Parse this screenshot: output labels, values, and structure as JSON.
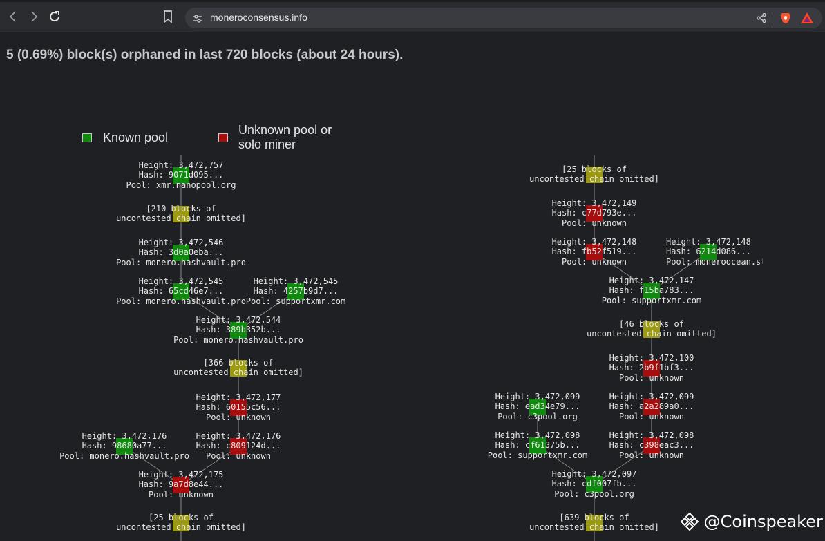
{
  "browser": {
    "url": "moneroconsensus.info",
    "icons": [
      "back-icon",
      "forward-icon",
      "reload-icon",
      "bookmark-icon",
      "site-info-icon",
      "share-icon",
      "brave-shields-icon",
      "brave-rewards-icon"
    ]
  },
  "page": {
    "headline": "5 (0.69%) block(s) orphaned in last 720 blocks (about 24 hours).",
    "legend": {
      "known": {
        "label": "Known pool",
        "color": "#0f8a0f"
      },
      "unknown": {
        "label": "Unknown pool or solo miner",
        "label_line1": "Unknown pool or",
        "label_line2": "solo miner",
        "color": "#a80d0d"
      }
    },
    "colors": {
      "known": "#0f8a0f",
      "unknown": "#a80d0d",
      "omitted": "#9c9a10",
      "edge": "#8a8a8a"
    }
  },
  "trees": [
    {
      "nodes": [
        {
          "id": "L1",
          "kind": "known",
          "lines": [
            "Height: 3,472,757",
            "Hash: 9071d095...",
            "Pool: xmr.nanopool.org"
          ]
        },
        {
          "id": "L2",
          "kind": "omitted",
          "lines": [
            "[210 blocks of",
            "uncontested chain omitted]"
          ]
        },
        {
          "id": "L3",
          "kind": "known",
          "lines": [
            "Height: 3,472,546",
            "Hash: 3d0a0eba...",
            "Pool: monero.hashvault.pro"
          ]
        },
        {
          "id": "L4",
          "kind": "known",
          "lines": [
            "Height: 3,472,545",
            "Hash: 65cd46e7...",
            "Pool: monero.hashvault.pro"
          ]
        },
        {
          "id": "L5",
          "kind": "known",
          "lines": [
            "Height: 3,472,545",
            "Hash: 4257b9d7...",
            "Pool: supportxmr.com"
          ]
        },
        {
          "id": "L6",
          "kind": "known",
          "lines": [
            "Height: 3,472,544",
            "Hash: 389b352b...",
            "Pool: monero.hashvault.pro"
          ]
        },
        {
          "id": "L7",
          "kind": "omitted",
          "lines": [
            "[366 blocks of",
            "uncontested chain omitted]"
          ]
        },
        {
          "id": "L8",
          "kind": "unknown",
          "lines": [
            "Height: 3,472,177",
            "Hash: 60155c56...",
            "Pool: unknown"
          ]
        },
        {
          "id": "L9",
          "kind": "known",
          "lines": [
            "Height: 3,472,176",
            "Hash: 98680a77...",
            "Pool: monero.hashvault.pro"
          ]
        },
        {
          "id": "L10",
          "kind": "unknown",
          "lines": [
            "Height: 3,472,176",
            "Hash: c809124d...",
            "Pool: unknown"
          ]
        },
        {
          "id": "L11",
          "kind": "unknown",
          "lines": [
            "Height: 3,472,175",
            "Hash: 9a7d8e44...",
            "Pool: unknown"
          ]
        },
        {
          "id": "L12",
          "kind": "omitted",
          "lines": [
            "[25 blocks of",
            "uncontested chain omitted]"
          ]
        }
      ]
    },
    {
      "nodes": [
        {
          "id": "R1",
          "kind": "omitted",
          "lines": [
            "[25 blocks of",
            "uncontested chain omitted]"
          ]
        },
        {
          "id": "R2",
          "kind": "unknown",
          "lines": [
            "Height: 3,472,149",
            "Hash: c77d793e...",
            "Pool: unknown"
          ]
        },
        {
          "id": "R3",
          "kind": "unknown",
          "lines": [
            "Height: 3,472,148",
            "Hash: fb52f519...",
            "Pool: unknown"
          ]
        },
        {
          "id": "R4",
          "kind": "known",
          "lines": [
            "Height: 3,472,148",
            "Hash: 6214d086...",
            "Pool: moneroocean.strea"
          ]
        },
        {
          "id": "R5",
          "kind": "known",
          "lines": [
            "Height: 3,472,147",
            "Hash: f15ba783...",
            "Pool: supportxmr.com"
          ]
        },
        {
          "id": "R6",
          "kind": "omitted",
          "lines": [
            "[46 blocks of",
            "uncontested chain omitted]"
          ]
        },
        {
          "id": "R7",
          "kind": "unknown",
          "lines": [
            "Height: 3,472,100",
            "Hash: 2b9f1bf3...",
            "Pool: unknown"
          ]
        },
        {
          "id": "R8",
          "kind": "known",
          "lines": [
            "Height: 3,472,099",
            "Hash: ead34e79...",
            "Pool: c3pool.org"
          ]
        },
        {
          "id": "R9",
          "kind": "unknown",
          "lines": [
            "Height: 3,472,099",
            "Hash: a2a289a0...",
            "Pool: unknown"
          ]
        },
        {
          "id": "R10",
          "kind": "known",
          "lines": [
            "Height: 3,472,098",
            "Hash: cf61375b...",
            "Pool: supportxmr.com"
          ]
        },
        {
          "id": "R11",
          "kind": "unknown",
          "lines": [
            "Height: 3,472,098",
            "Hash: c398eac3...",
            "Pool: unknown"
          ]
        },
        {
          "id": "R12",
          "kind": "known",
          "lines": [
            "Height: 3,472,097",
            "Hash: cdf007fb...",
            "Pool: c3pool.org"
          ]
        },
        {
          "id": "R13",
          "kind": "omitted",
          "lines": [
            "[639 blocks of",
            "uncontested chain omitted]"
          ]
        }
      ]
    }
  ],
  "watermark": {
    "text": "@Coinspeaker",
    "icon": "coinspeaker-logo-icon"
  }
}
